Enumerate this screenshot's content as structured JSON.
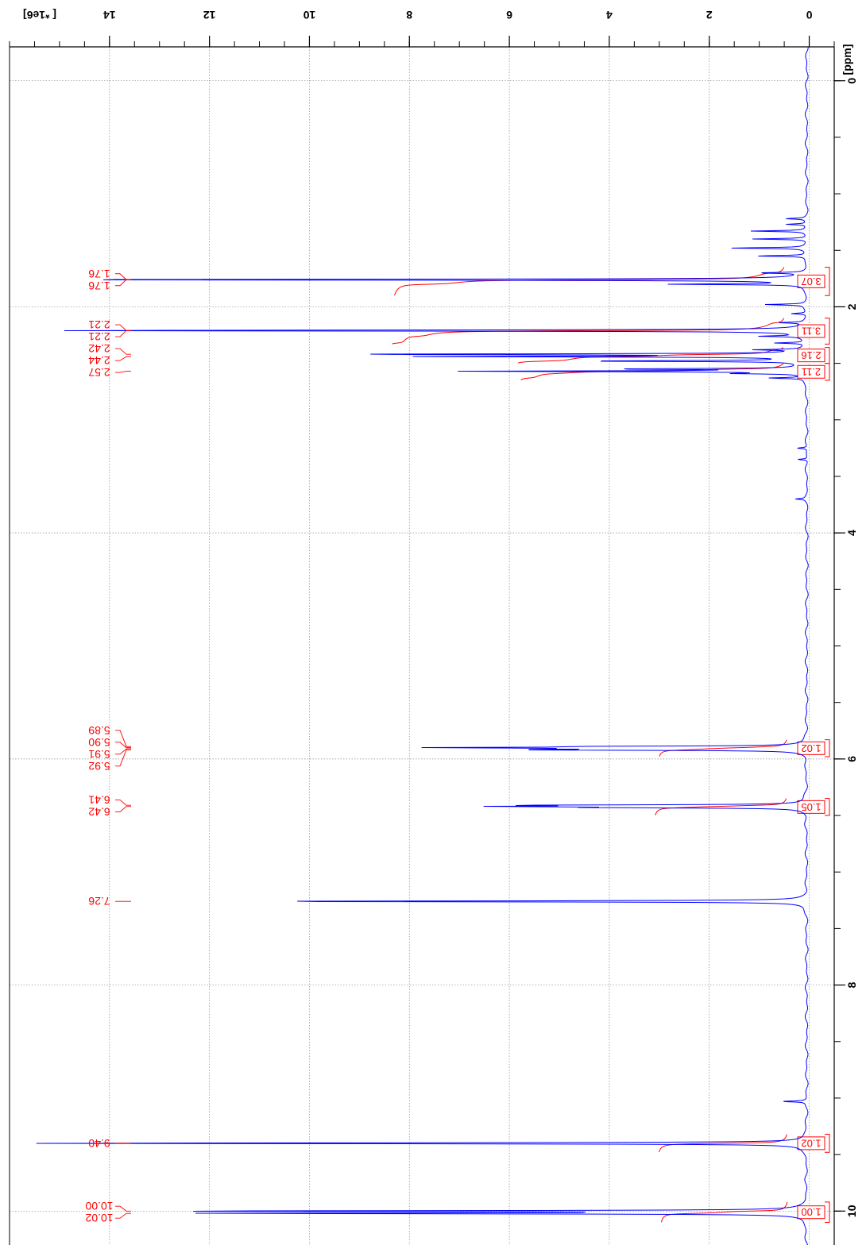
{
  "chart_data": {
    "type": "line",
    "orientation": "rotated",
    "title": "",
    "ppm_axis": {
      "label": "[ppm]",
      "ticks": [
        "0",
        "2",
        "4",
        "6",
        "8",
        "10"
      ],
      "range": [
        -0.3,
        10.3
      ],
      "minor_step": 0.5
    },
    "intensity_axis": {
      "label": "[ *1e6]",
      "ticks": [
        "0",
        "2",
        "4",
        "6",
        "8",
        "10",
        "12",
        "14"
      ],
      "range": [
        -0.5,
        16.0
      ],
      "minor_step": 0.5
    },
    "grid": true,
    "series": [
      {
        "color": "#0000ff",
        "baseline": 0.05,
        "peaks": [
          {
            "ppm": 1.22,
            "height": 0.4
          },
          {
            "ppm": 1.27,
            "height": 0.4
          },
          {
            "ppm": 1.33,
            "height": 1.1
          },
          {
            "ppm": 1.4,
            "height": 1.1
          },
          {
            "ppm": 1.48,
            "height": 1.5
          },
          {
            "ppm": 1.55,
            "height": 1.0
          },
          {
            "ppm": 1.7,
            "height": 0.9
          },
          {
            "ppm": 1.76,
            "height": 16.0
          },
          {
            "ppm": 1.8,
            "height": 2.6
          },
          {
            "ppm": 1.98,
            "height": 0.8
          },
          {
            "ppm": 2.06,
            "height": 0.3
          },
          {
            "ppm": 2.14,
            "height": 0.5
          },
          {
            "ppm": 2.21,
            "height": 16.0
          },
          {
            "ppm": 2.26,
            "height": 0.8
          },
          {
            "ppm": 2.32,
            "height": 0.6
          },
          {
            "ppm": 2.38,
            "height": 0.9
          },
          {
            "ppm": 2.42,
            "height": 9.3
          },
          {
            "ppm": 2.44,
            "height": 7.4
          },
          {
            "ppm": 2.48,
            "height": 4.5
          },
          {
            "ppm": 2.55,
            "height": 3.7
          },
          {
            "ppm": 2.57,
            "height": 6.8
          },
          {
            "ppm": 2.59,
            "height": 1.2
          },
          {
            "ppm": 2.63,
            "height": 0.7
          },
          {
            "ppm": 3.25,
            "height": 0.2
          },
          {
            "ppm": 3.35,
            "height": 0.2
          },
          {
            "ppm": 3.7,
            "height": 0.2
          },
          {
            "ppm": 5.89,
            "height": 3.6
          },
          {
            "ppm": 5.9,
            "height": 6.5
          },
          {
            "ppm": 5.91,
            "height": 3.5
          },
          {
            "ppm": 5.92,
            "height": 4.6
          },
          {
            "ppm": 6.41,
            "height": 5.2
          },
          {
            "ppm": 6.42,
            "height": 5.2
          },
          {
            "ppm": 6.43,
            "height": 3.4
          },
          {
            "ppm": 7.26,
            "height": 11.5
          },
          {
            "ppm": 9.03,
            "height": 0.5
          },
          {
            "ppm": 9.4,
            "height": 16.0
          },
          {
            "ppm": 10.0,
            "height": 12.8
          },
          {
            "ppm": 10.02,
            "height": 12.1
          }
        ]
      }
    ],
    "peak_labels": [
      {
        "text": "1.76",
        "ppm": 1.76
      },
      {
        "text": "1.76",
        "ppm": 1.76
      },
      {
        "text": "2.21",
        "ppm": 2.21
      },
      {
        "text": "2.21",
        "ppm": 2.21
      },
      {
        "text": "2.42",
        "ppm": 2.42
      },
      {
        "text": "2.44",
        "ppm": 2.44
      },
      {
        "text": "2.57",
        "ppm": 2.57
      },
      {
        "text": "5.89",
        "ppm": 5.89
      },
      {
        "text": "5.90",
        "ppm": 5.9
      },
      {
        "text": "5.91",
        "ppm": 5.91
      },
      {
        "text": "5.92",
        "ppm": 5.92
      },
      {
        "text": "6.41",
        "ppm": 6.41
      },
      {
        "text": "6.42",
        "ppm": 6.42
      },
      {
        "text": "7.26",
        "ppm": 7.26
      },
      {
        "text": "9.40",
        "ppm": 9.4
      },
      {
        "text": "10.00",
        "ppm": 10.0
      },
      {
        "text": "10.02",
        "ppm": 10.02
      }
    ],
    "integrals": [
      {
        "value": "3.07",
        "ppm_from": 1.65,
        "ppm_to": 1.9
      },
      {
        "value": "3.11",
        "ppm_from": 2.1,
        "ppm_to": 2.33
      },
      {
        "value": "2.16",
        "ppm_from": 2.36,
        "ppm_to": 2.5
      },
      {
        "value": "2.11",
        "ppm_from": 2.5,
        "ppm_to": 2.65
      },
      {
        "value": "1.02",
        "ppm_from": 5.83,
        "ppm_to": 5.98
      },
      {
        "value": "1.05",
        "ppm_from": 6.35,
        "ppm_to": 6.5
      },
      {
        "value": "1.02",
        "ppm_from": 9.32,
        "ppm_to": 9.48
      },
      {
        "value": "1.00",
        "ppm_from": 9.92,
        "ppm_to": 10.1
      }
    ]
  }
}
